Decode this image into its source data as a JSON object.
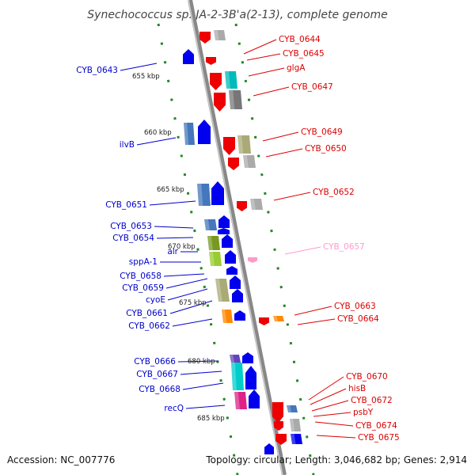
{
  "title": "Synechococcus sp. JA-2-3B'a(2-13), complete genome",
  "footer": {
    "accession": "Accession: NC_007776",
    "topology": "Topology: circular; Length: 3,046,682 bp; Genes: 2,914"
  },
  "colors": {
    "forward_label": "#0000cc",
    "reverse_label": "#dd0000",
    "faint_label": "#ff99cc",
    "axis_dash": "#228822",
    "spine": "#888888"
  },
  "kbp_marks": [
    "655 kbp",
    "660 kbp",
    "665 kbp",
    "670 kbp",
    "675 kbp",
    "680 kbp",
    "685 kbp"
  ],
  "left_labels": [
    "CYB_0643",
    "ilvB",
    "CYB_0651",
    "CYB_0653",
    "CYB_0654",
    "alr",
    "sppA-1",
    "CYB_0658",
    "CYB_0659",
    "cyoE",
    "CYB_0661",
    "CYB_0662",
    "CYB_0666",
    "CYB_0667",
    "CYB_0668",
    "recQ"
  ],
  "right_labels": [
    "CYB_0644",
    "CYB_0645",
    "glgA",
    "CYB_0647",
    "CYB_0649",
    "CYB_0650",
    "CYB_0652",
    "CYB_0657",
    "CYB_0663",
    "CYB_0664",
    "CYB_0670",
    "hisB",
    "CYB_0672",
    "psbY",
    "CYB_0674",
    "CYB_0675"
  ],
  "left_genes": [
    {
      "label": "CYB_0643",
      "color": "#0000ee",
      "shape": "arrow"
    },
    {
      "label": "ilvB",
      "color": "#4477bb",
      "shape": "block"
    },
    {
      "label": "ilvB",
      "color": "#0000ee",
      "shape": "arrow"
    },
    {
      "label": "CYB_0651",
      "color": "#4477bb",
      "shape": "block"
    },
    {
      "label": "CYB_0651",
      "color": "#0000ee",
      "shape": "arrow"
    },
    {
      "label": "CYB_0653",
      "color": "#4477bb",
      "shape": "block"
    },
    {
      "label": "CYB_0653",
      "color": "#0000ee",
      "shape": "arrow"
    },
    {
      "label": "CYB_0654",
      "color": "#0000ee",
      "shape": "arrow"
    },
    {
      "label": "alr",
      "color": "#779922",
      "shape": "block"
    },
    {
      "label": "alr",
      "color": "#0000ee",
      "shape": "arrow"
    },
    {
      "label": "sppA-1",
      "color": "#99cc33",
      "shape": "block"
    },
    {
      "label": "sppA-1",
      "color": "#0000ee",
      "shape": "arrow"
    },
    {
      "label": "CYB_0658",
      "color": "#0000ee",
      "shape": "arrow"
    },
    {
      "label": "CYB_0659",
      "color": "#aaaa77",
      "shape": "block"
    },
    {
      "label": "CYB_0659",
      "color": "#0000ee",
      "shape": "arrow"
    },
    {
      "label": "cyoE",
      "color": "#aaaa77",
      "shape": "block"
    },
    {
      "label": "cyoE",
      "color": "#0000ee",
      "shape": "arrow"
    },
    {
      "label": "CYB_0662",
      "color": "#ff8800",
      "shape": "block"
    },
    {
      "label": "CYB_0662",
      "color": "#0000ee",
      "shape": "arrow"
    },
    {
      "label": "CYB_0666",
      "color": "#6644bb",
      "shape": "block"
    },
    {
      "label": "CYB_0666",
      "color": "#0000ee",
      "shape": "arrow"
    },
    {
      "label": "CYB_0667",
      "color": "#00cccc",
      "shape": "block"
    },
    {
      "label": "CYB_0667",
      "color": "#0000ee",
      "shape": "arrow"
    },
    {
      "label": "CYB_0668",
      "color": "#dd2288",
      "shape": "block"
    },
    {
      "label": "CYB_0668",
      "color": "#0000ee",
      "shape": "arrow"
    },
    {
      "label": "recQ",
      "color": "#0000ee",
      "shape": "arrow"
    }
  ],
  "right_genes": [
    {
      "label": "CYB_0644",
      "color": "#ee0000",
      "shape": "arrow"
    },
    {
      "label": "CYB_0644",
      "color": "#aaaaaa",
      "shape": "block"
    },
    {
      "label": "CYB_0645",
      "color": "#ee0000",
      "shape": "arrow"
    },
    {
      "label": "glgA",
      "color": "#ee0000",
      "shape": "arrow"
    },
    {
      "label": "glgA",
      "color": "#00bbbb",
      "shape": "block"
    },
    {
      "label": "CYB_0647",
      "color": "#ee0000",
      "shape": "arrow"
    },
    {
      "label": "CYB_0647",
      "color": "#777777",
      "shape": "block"
    },
    {
      "label": "CYB_0649",
      "color": "#ee0000",
      "shape": "arrow"
    },
    {
      "label": "CYB_0649",
      "color": "#aaaa77",
      "shape": "block"
    },
    {
      "label": "CYB_0650",
      "color": "#ee0000",
      "shape": "arrow"
    },
    {
      "label": "CYB_0650",
      "color": "#aaaaaa",
      "shape": "block"
    },
    {
      "label": "CYB_0652",
      "color": "#ee0000",
      "shape": "arrow"
    },
    {
      "label": "CYB_0652",
      "color": "#aaaaaa",
      "shape": "block"
    },
    {
      "label": "CYB_0657",
      "color": "#ff99cc",
      "shape": "arrow"
    },
    {
      "label": "CYB_0663",
      "color": "#ee0000",
      "shape": "arrow"
    },
    {
      "label": "CYB_0664",
      "color": "#ff8800",
      "shape": "block"
    },
    {
      "label": "CYB_0670",
      "color": "#4477bb",
      "shape": "block"
    },
    {
      "label": "hisB",
      "color": "#ee0000",
      "shape": "arrow"
    },
    {
      "label": "CYB_0672",
      "color": "#aaaaaa",
      "shape": "block"
    },
    {
      "label": "psbY",
      "color": "#ee0000",
      "shape": "arrow"
    },
    {
      "label": "CYB_0674",
      "color": "#ee0000",
      "shape": "arrow"
    },
    {
      "label": "CYB_0675",
      "color": "#0000ee",
      "shape": "block"
    }
  ]
}
